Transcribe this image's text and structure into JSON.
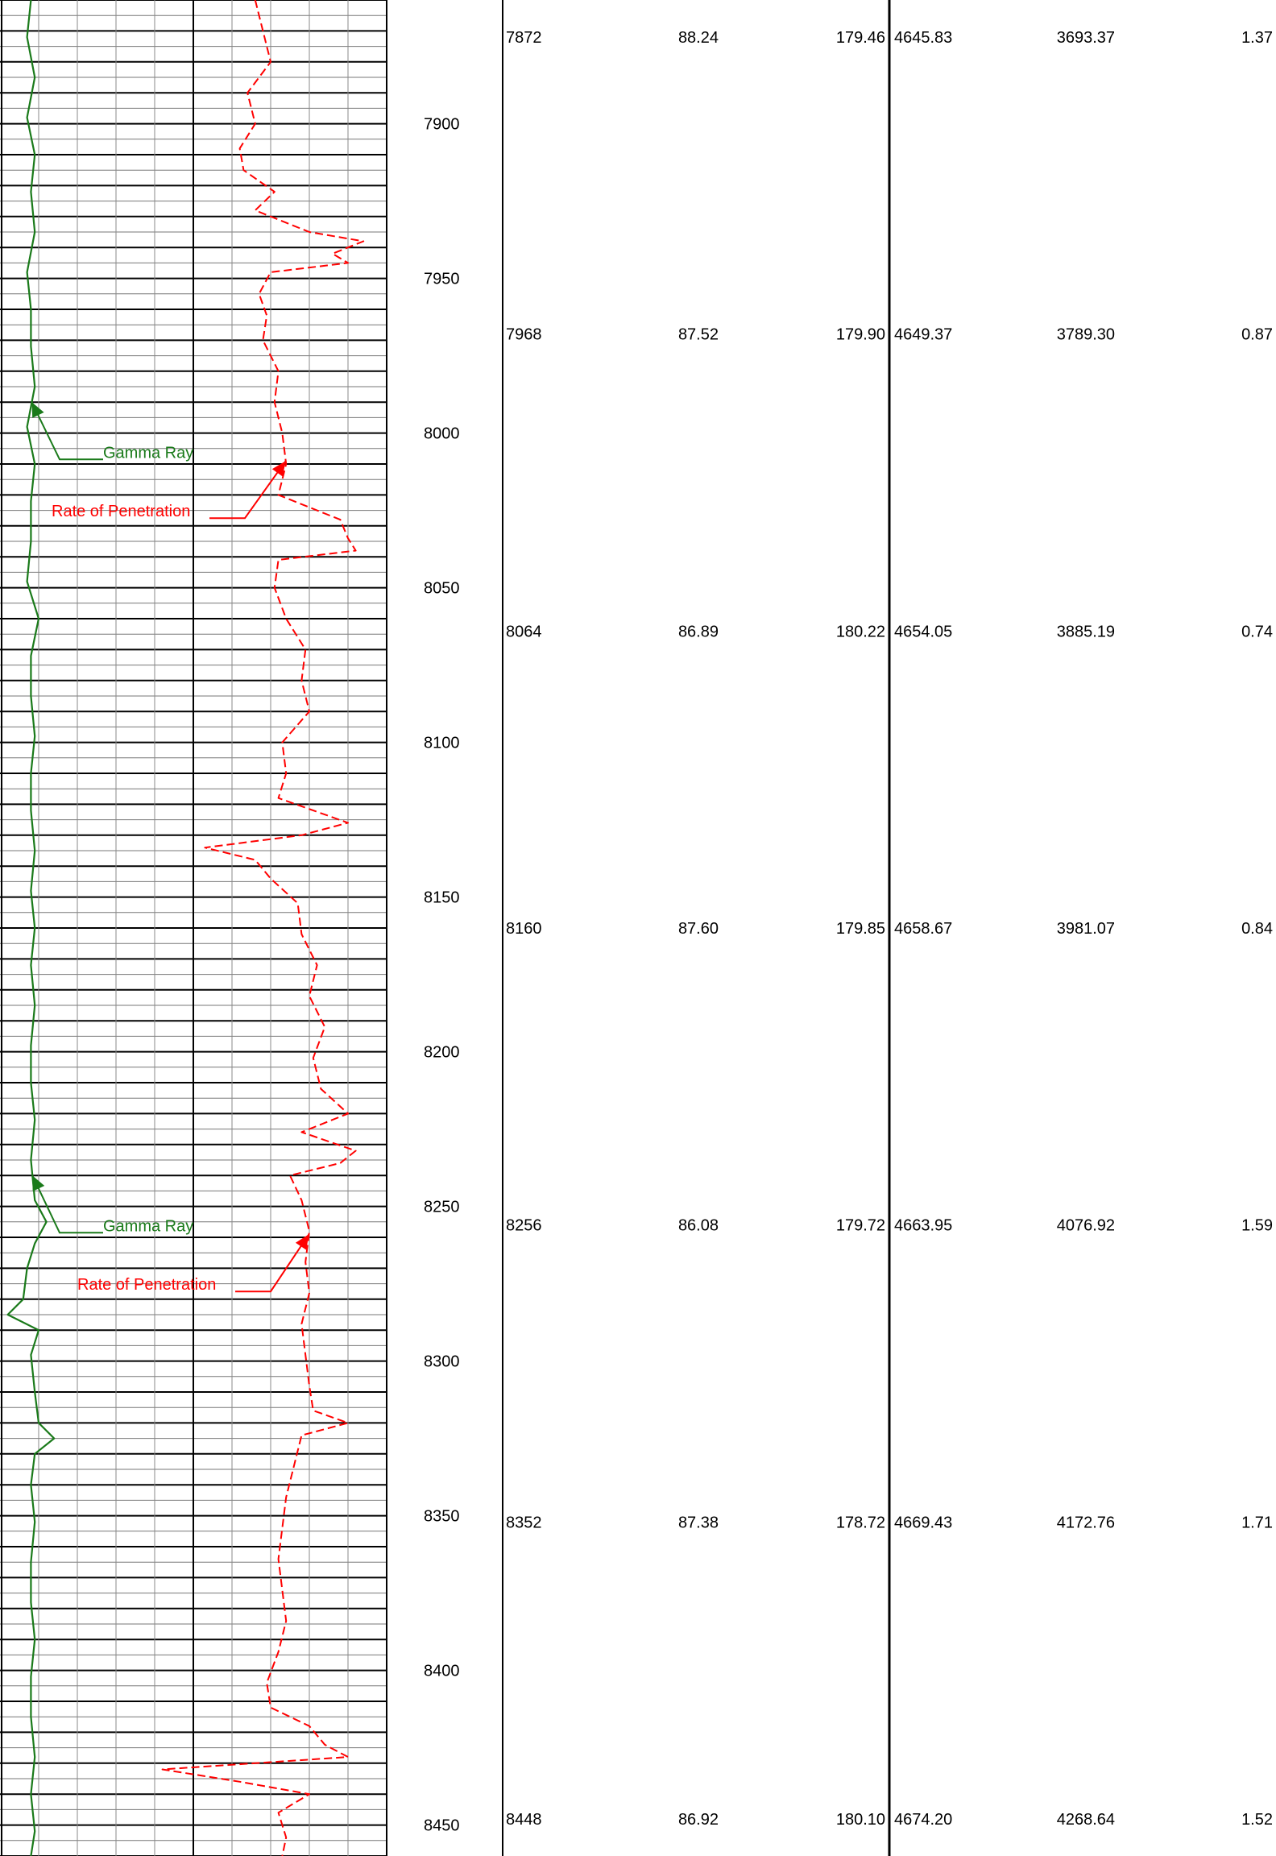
{
  "chart_data": {
    "type": "line",
    "tracks": {
      "gamma_ray": {
        "color": "#1a7a1a",
        "line_style": "solid"
      },
      "rate_of_penetration": {
        "color": "#ff0000",
        "line_style": "dashed"
      }
    },
    "depth_range": [
      7860,
      8460
    ],
    "depth_ticks": [
      "7900",
      "7950",
      "8000",
      "8050",
      "8100",
      "8150",
      "8200",
      "8250",
      "8300",
      "8350",
      "8400",
      "8450"
    ],
    "annotations": [
      {
        "id": "gr1",
        "label": "Gamma Ray",
        "color": "#1a7a1a",
        "depth": 8002
      },
      {
        "id": "rop1",
        "label": "Rate of Penetration",
        "color": "#ff0000",
        "depth": 8021
      },
      {
        "id": "gr2",
        "label": "Gamma Ray",
        "color": "#1a7a1a",
        "depth": 8252
      },
      {
        "id": "rop2",
        "label": "Rate of Penetration",
        "color": "#ff0000",
        "depth": 8271
      }
    ],
    "survey_rows": [
      {
        "md": "7872",
        "inc": "88.24",
        "azi": "179.46",
        "tvd": "4645.83",
        "vs": "3693.37",
        "dls": "1.37"
      },
      {
        "md": "7968",
        "inc": "87.52",
        "azi": "179.90",
        "tvd": "4649.37",
        "vs": "3789.30",
        "dls": "0.87"
      },
      {
        "md": "8064",
        "inc": "86.89",
        "azi": "180.22",
        "tvd": "4654.05",
        "vs": "3885.19",
        "dls": "0.74"
      },
      {
        "md": "8160",
        "inc": "87.60",
        "azi": "179.85",
        "tvd": "4658.67",
        "vs": "3981.07",
        "dls": "0.84"
      },
      {
        "md": "8256",
        "inc": "86.08",
        "azi": "179.72",
        "tvd": "4663.95",
        "vs": "4076.92",
        "dls": "1.59"
      },
      {
        "md": "8352",
        "inc": "87.38",
        "azi": "178.72",
        "tvd": "4669.43",
        "vs": "4172.76",
        "dls": "1.71"
      },
      {
        "md": "8448",
        "inc": "86.92",
        "azi": "180.10",
        "tvd": "4674.20",
        "vs": "4268.64",
        "dls": "1.52"
      }
    ],
    "series": [
      {
        "name": "Gamma Ray",
        "values": [
          [
            7860,
            0.08
          ],
          [
            7872,
            0.07
          ],
          [
            7885,
            0.09
          ],
          [
            7898,
            0.07
          ],
          [
            7910,
            0.09
          ],
          [
            7922,
            0.08
          ],
          [
            7935,
            0.09
          ],
          [
            7948,
            0.07
          ],
          [
            7960,
            0.08
          ],
          [
            7972,
            0.08
          ],
          [
            7985,
            0.09
          ],
          [
            7998,
            0.07
          ],
          [
            8010,
            0.09
          ],
          [
            8022,
            0.08
          ],
          [
            8035,
            0.08
          ],
          [
            8048,
            0.07
          ],
          [
            8060,
            0.1
          ],
          [
            8072,
            0.08
          ],
          [
            8085,
            0.08
          ],
          [
            8098,
            0.09
          ],
          [
            8110,
            0.08
          ],
          [
            8122,
            0.08
          ],
          [
            8135,
            0.09
          ],
          [
            8148,
            0.08
          ],
          [
            8160,
            0.09
          ],
          [
            8172,
            0.08
          ],
          [
            8185,
            0.09
          ],
          [
            8198,
            0.08
          ],
          [
            8210,
            0.08
          ],
          [
            8222,
            0.09
          ],
          [
            8235,
            0.08
          ],
          [
            8248,
            0.09
          ],
          [
            8255,
            0.12
          ],
          [
            8262,
            0.09
          ],
          [
            8270,
            0.07
          ],
          [
            8280,
            0.06
          ],
          [
            8285,
            0.02
          ],
          [
            8290,
            0.1
          ],
          [
            8298,
            0.08
          ],
          [
            8310,
            0.09
          ],
          [
            8320,
            0.1
          ],
          [
            8325,
            0.14
          ],
          [
            8330,
            0.09
          ],
          [
            8340,
            0.08
          ],
          [
            8352,
            0.09
          ],
          [
            8365,
            0.08
          ],
          [
            8378,
            0.08
          ],
          [
            8390,
            0.09
          ],
          [
            8402,
            0.08
          ],
          [
            8415,
            0.08
          ],
          [
            8428,
            0.09
          ],
          [
            8440,
            0.08
          ],
          [
            8452,
            0.09
          ],
          [
            8460,
            0.08
          ]
        ]
      },
      {
        "name": "Rate of Penetration",
        "values": [
          [
            7860,
            0.66
          ],
          [
            7870,
            0.68
          ],
          [
            7880,
            0.7
          ],
          [
            7890,
            0.64
          ],
          [
            7900,
            0.66
          ],
          [
            7908,
            0.62
          ],
          [
            7915,
            0.63
          ],
          [
            7922,
            0.71
          ],
          [
            7928,
            0.66
          ],
          [
            7935,
            0.8
          ],
          [
            7938,
            0.94
          ],
          [
            7942,
            0.86
          ],
          [
            7945,
            0.9
          ],
          [
            7948,
            0.7
          ],
          [
            7955,
            0.67
          ],
          [
            7962,
            0.69
          ],
          [
            7970,
            0.68
          ],
          [
            7980,
            0.72
          ],
          [
            7990,
            0.71
          ],
          [
            8000,
            0.73
          ],
          [
            8010,
            0.74
          ],
          [
            8020,
            0.72
          ],
          [
            8028,
            0.88
          ],
          [
            8034,
            0.9
          ],
          [
            8038,
            0.92
          ],
          [
            8041,
            0.72
          ],
          [
            8050,
            0.71
          ],
          [
            8060,
            0.74
          ],
          [
            8070,
            0.79
          ],
          [
            8080,
            0.78
          ],
          [
            8090,
            0.8
          ],
          [
            8100,
            0.73
          ],
          [
            8110,
            0.74
          ],
          [
            8118,
            0.72
          ],
          [
            8126,
            0.9
          ],
          [
            8130,
            0.78
          ],
          [
            8134,
            0.53
          ],
          [
            8138,
            0.66
          ],
          [
            8144,
            0.7
          ],
          [
            8152,
            0.77
          ],
          [
            8162,
            0.78
          ],
          [
            8172,
            0.82
          ],
          [
            8182,
            0.8
          ],
          [
            8192,
            0.84
          ],
          [
            8202,
            0.81
          ],
          [
            8212,
            0.83
          ],
          [
            8220,
            0.9
          ],
          [
            8226,
            0.78
          ],
          [
            8232,
            0.92
          ],
          [
            8236,
            0.88
          ],
          [
            8240,
            0.75
          ],
          [
            8248,
            0.78
          ],
          [
            8258,
            0.8
          ],
          [
            8268,
            0.79
          ],
          [
            8278,
            0.8
          ],
          [
            8288,
            0.78
          ],
          [
            8298,
            0.79
          ],
          [
            8308,
            0.8
          ],
          [
            8316,
            0.81
          ],
          [
            8320,
            0.9
          ],
          [
            8324,
            0.78
          ],
          [
            8334,
            0.76
          ],
          [
            8344,
            0.74
          ],
          [
            8354,
            0.73
          ],
          [
            8364,
            0.72
          ],
          [
            8374,
            0.73
          ],
          [
            8384,
            0.74
          ],
          [
            8394,
            0.72
          ],
          [
            8404,
            0.69
          ],
          [
            8412,
            0.7
          ],
          [
            8418,
            0.8
          ],
          [
            8424,
            0.84
          ],
          [
            8428,
            0.9
          ],
          [
            8432,
            0.42
          ],
          [
            8436,
            0.62
          ],
          [
            8440,
            0.8
          ],
          [
            8446,
            0.72
          ],
          [
            8454,
            0.74
          ],
          [
            8460,
            0.73
          ]
        ]
      }
    ]
  }
}
